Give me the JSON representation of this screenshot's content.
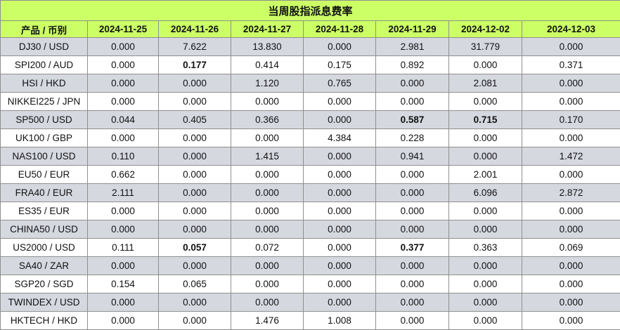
{
  "table": {
    "title": "当周股指派息费率",
    "columns": [
      "产品 / 币别",
      "2024-11-25",
      "2024-11-26",
      "2024-11-27",
      "2024-11-28",
      "2024-11-29",
      "2024-12-02",
      "2024-12-03"
    ],
    "rows": [
      {
        "product": "DJ30 / USD",
        "values": [
          "0.000",
          "7.622",
          "13.830",
          "0.000",
          "2.981",
          "31.779",
          "0.000"
        ],
        "bold": []
      },
      {
        "product": "SPI200 / AUD",
        "values": [
          "0.000",
          "0.177",
          "0.414",
          "0.175",
          "0.892",
          "0.000",
          "0.371"
        ],
        "bold": [
          1
        ]
      },
      {
        "product": "HSI / HKD",
        "values": [
          "0.000",
          "0.000",
          "1.120",
          "0.765",
          "0.000",
          "2.081",
          "0.000"
        ],
        "bold": []
      },
      {
        "product": "NIKKEI225 / JPN",
        "values": [
          "0.000",
          "0.000",
          "0.000",
          "0.000",
          "0.000",
          "0.000",
          "0.000"
        ],
        "bold": []
      },
      {
        "product": "SP500 / USD",
        "values": [
          "0.044",
          "0.405",
          "0.366",
          "0.000",
          "0.587",
          "0.715",
          "0.170"
        ],
        "bold": [
          4,
          5
        ]
      },
      {
        "product": "UK100 / GBP",
        "values": [
          "0.000",
          "0.000",
          "0.000",
          "4.384",
          "0.228",
          "0.000",
          "0.000"
        ],
        "bold": []
      },
      {
        "product": "NAS100 / USD",
        "values": [
          "0.110",
          "0.000",
          "1.415",
          "0.000",
          "0.941",
          "0.000",
          "1.472"
        ],
        "bold": []
      },
      {
        "product": "EU50 / EUR",
        "values": [
          "0.662",
          "0.000",
          "0.000",
          "0.000",
          "0.000",
          "2.001",
          "0.000"
        ],
        "bold": []
      },
      {
        "product": "FRA40 / EUR",
        "values": [
          "2.111",
          "0.000",
          "0.000",
          "0.000",
          "0.000",
          "6.096",
          "2.872"
        ],
        "bold": []
      },
      {
        "product": "ES35 / EUR",
        "values": [
          "0.000",
          "0.000",
          "0.000",
          "0.000",
          "0.000",
          "0.000",
          "0.000"
        ],
        "bold": []
      },
      {
        "product": "CHINA50 / USD",
        "values": [
          "0.000",
          "0.000",
          "0.000",
          "0.000",
          "0.000",
          "0.000",
          "0.000"
        ],
        "bold": []
      },
      {
        "product": "US2000 / USD",
        "values": [
          "0.111",
          "0.057",
          "0.072",
          "0.000",
          "0.377",
          "0.363",
          "0.069"
        ],
        "bold": [
          1,
          4
        ]
      },
      {
        "product": "SA40 / ZAR",
        "values": [
          "0.000",
          "0.000",
          "0.000",
          "0.000",
          "0.000",
          "0.000",
          "0.000"
        ],
        "bold": []
      },
      {
        "product": "SGP20 / SGD",
        "values": [
          "0.154",
          "0.065",
          "0.000",
          "0.000",
          "0.000",
          "0.000",
          "0.000"
        ],
        "bold": []
      },
      {
        "product": "TWINDEX / USD",
        "values": [
          "0.000",
          "0.000",
          "0.000",
          "0.000",
          "0.000",
          "0.000",
          "0.000"
        ],
        "bold": []
      },
      {
        "product": "HKTECH / HKD",
        "values": [
          "0.000",
          "0.000",
          "1.476",
          "1.008",
          "0.000",
          "0.000",
          "0.000"
        ],
        "bold": []
      }
    ],
    "colors": {
      "header_bg": "#ccff66",
      "row_alt_bg": "#d6d8e0",
      "row_bg": "#ffffff",
      "border": "#8f8f8f"
    }
  }
}
